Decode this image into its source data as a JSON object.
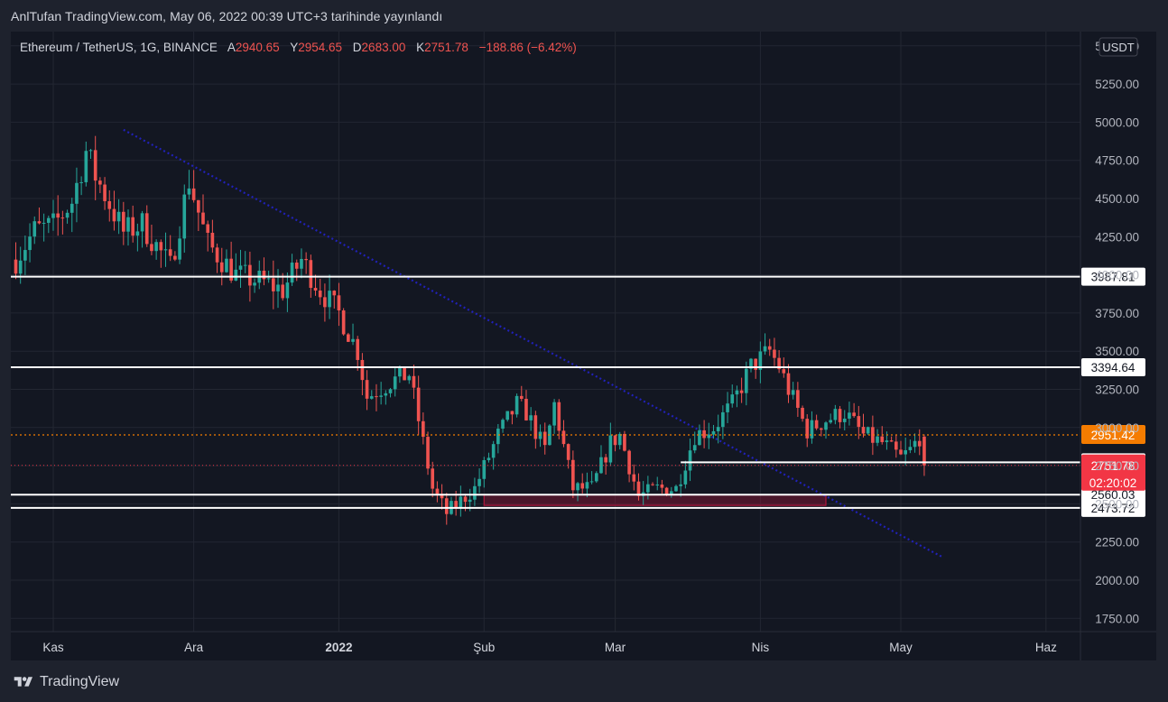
{
  "caption": "AnlTufan TradingView.com, May 06, 2022 00:39 UTC+3 tarihinde yayınlandı",
  "legend": {
    "symbol": "Ethereum / TetherUS, 1G, BINANCE",
    "o_key": "A",
    "o_val": "2940.65",
    "h_key": "Y",
    "h_val": "2954.65",
    "l_key": "D",
    "l_val": "2683.00",
    "c_key": "K",
    "c_val": "2751.78",
    "change": "−188.86 (−6.42%)"
  },
  "brand": {
    "name": "TradingView",
    "logo_icon": "tradingview-logo-icon"
  },
  "colors": {
    "background": "#131722",
    "up": "#26a69a",
    "down": "#ef5350",
    "trendline": "#2121b8",
    "level": "#ffffff",
    "current_price_bg": "#f23645",
    "alert_price_bg": "#f57c00",
    "zone": "#b2163b"
  },
  "chart_data": {
    "type": "candlestick",
    "title": "Ethereum / TetherUS, 1G, BINANCE",
    "currency": "USDT",
    "y_range": [
      1650,
      5400
    ],
    "y_ticks": [
      "5500.00",
      "5250.00",
      "5000.00",
      "4750.00",
      "4500.00",
      "4250.00",
      "4000.00",
      "3750.00",
      "3500.00",
      "3250.00",
      "3000.00",
      "2750.00",
      "2500.00",
      "2250.00",
      "2000.00",
      "1750.00"
    ],
    "x_ticks": [
      {
        "date": "2021-11-01",
        "label": "Kas"
      },
      {
        "date": "2021-12-01",
        "label": "Ara"
      },
      {
        "date": "2022-01-01",
        "label": "2022"
      },
      {
        "date": "2022-02-01",
        "label": "Şub"
      },
      {
        "date": "2022-03-01",
        "label": "Mar"
      },
      {
        "date": "2022-04-01",
        "label": "Nis"
      },
      {
        "date": "2022-05-01",
        "label": "May"
      },
      {
        "date": "2022-06-01",
        "label": "Haz"
      }
    ],
    "x_range": [
      "2021-10-24",
      "2022-06-07"
    ],
    "closes_approx": [
      {
        "date": "2021-10-24",
        "close": 4100
      },
      {
        "date": "2021-10-28",
        "close": 4290
      },
      {
        "date": "2021-11-01",
        "close": 4320
      },
      {
        "date": "2021-11-05",
        "close": 4480
      },
      {
        "date": "2021-11-08",
        "close": 4810
      },
      {
        "date": "2021-11-10",
        "close": 4650
      },
      {
        "date": "2021-11-16",
        "close": 4280
      },
      {
        "date": "2021-11-20",
        "close": 4330
      },
      {
        "date": "2021-11-26",
        "close": 4050
      },
      {
        "date": "2021-11-30",
        "close": 4620
      },
      {
        "date": "2021-12-04",
        "close": 4200
      },
      {
        "date": "2021-12-10",
        "close": 4000
      },
      {
        "date": "2021-12-16",
        "close": 3950
      },
      {
        "date": "2021-12-20",
        "close": 3900
      },
      {
        "date": "2021-12-24",
        "close": 4100
      },
      {
        "date": "2021-12-28",
        "close": 3900
      },
      {
        "date": "2022-01-01",
        "close": 3750
      },
      {
        "date": "2022-01-05",
        "close": 3500
      },
      {
        "date": "2022-01-07",
        "close": 3200
      },
      {
        "date": "2022-01-12",
        "close": 3300
      },
      {
        "date": "2022-01-16",
        "close": 3350
      },
      {
        "date": "2022-01-21",
        "close": 2600
      },
      {
        "date": "2022-01-24",
        "close": 2440
      },
      {
        "date": "2022-01-30",
        "close": 2600
      },
      {
        "date": "2022-02-04",
        "close": 2950
      },
      {
        "date": "2022-02-08",
        "close": 3150
      },
      {
        "date": "2022-02-10",
        "close": 3100
      },
      {
        "date": "2022-02-14",
        "close": 2850
      },
      {
        "date": "2022-02-16",
        "close": 3150
      },
      {
        "date": "2022-02-20",
        "close": 2600
      },
      {
        "date": "2022-02-24",
        "close": 2600
      },
      {
        "date": "2022-02-28",
        "close": 2900
      },
      {
        "date": "2022-03-02",
        "close": 2950
      },
      {
        "date": "2022-03-06",
        "close": 2550
      },
      {
        "date": "2022-03-10",
        "close": 2600
      },
      {
        "date": "2022-03-14",
        "close": 2600
      },
      {
        "date": "2022-03-18",
        "close": 2950
      },
      {
        "date": "2022-03-22",
        "close": 3000
      },
      {
        "date": "2022-03-26",
        "close": 3150
      },
      {
        "date": "2022-03-30",
        "close": 3400
      },
      {
        "date": "2022-04-03",
        "close": 3500
      },
      {
        "date": "2022-04-05",
        "close": 3400
      },
      {
        "date": "2022-04-07",
        "close": 3250
      },
      {
        "date": "2022-04-11",
        "close": 2980
      },
      {
        "date": "2022-04-15",
        "close": 3050
      },
      {
        "date": "2022-04-19",
        "close": 3100
      },
      {
        "date": "2022-04-23",
        "close": 2950
      },
      {
        "date": "2022-04-27",
        "close": 2900
      },
      {
        "date": "2022-05-01",
        "close": 2800
      },
      {
        "date": "2022-05-03",
        "close": 2850
      },
      {
        "date": "2022-05-05",
        "close": 2940
      },
      {
        "date": "2022-05-06",
        "close": 2752
      }
    ],
    "horizontal_levels": [
      {
        "price": 3987.81,
        "label": "3987.81"
      },
      {
        "price": 3394.64,
        "label": "3394.64"
      },
      {
        "price": 2772.27,
        "label": "2772.27",
        "from_date": "2022-03-15"
      },
      {
        "price": 2560.03,
        "label": "2560.03"
      },
      {
        "price": 2473.72,
        "label": "2473.72"
      }
    ],
    "dotted_levels": [
      {
        "price": 2951.42,
        "label": "2951.42",
        "style": "orange-dotted"
      },
      {
        "price": 2751.78,
        "label": "2751.78",
        "style": "red-dotted"
      }
    ],
    "countdown": "02:20:02",
    "trendline": {
      "from": {
        "date": "2021-11-16",
        "price": 4950
      },
      "to": {
        "date": "2022-05-10",
        "price": 2150
      }
    },
    "zone": {
      "from_date": "2022-02-01",
      "to_date": "2022-04-15",
      "price_low": 2490,
      "price_high": 2560
    }
  }
}
